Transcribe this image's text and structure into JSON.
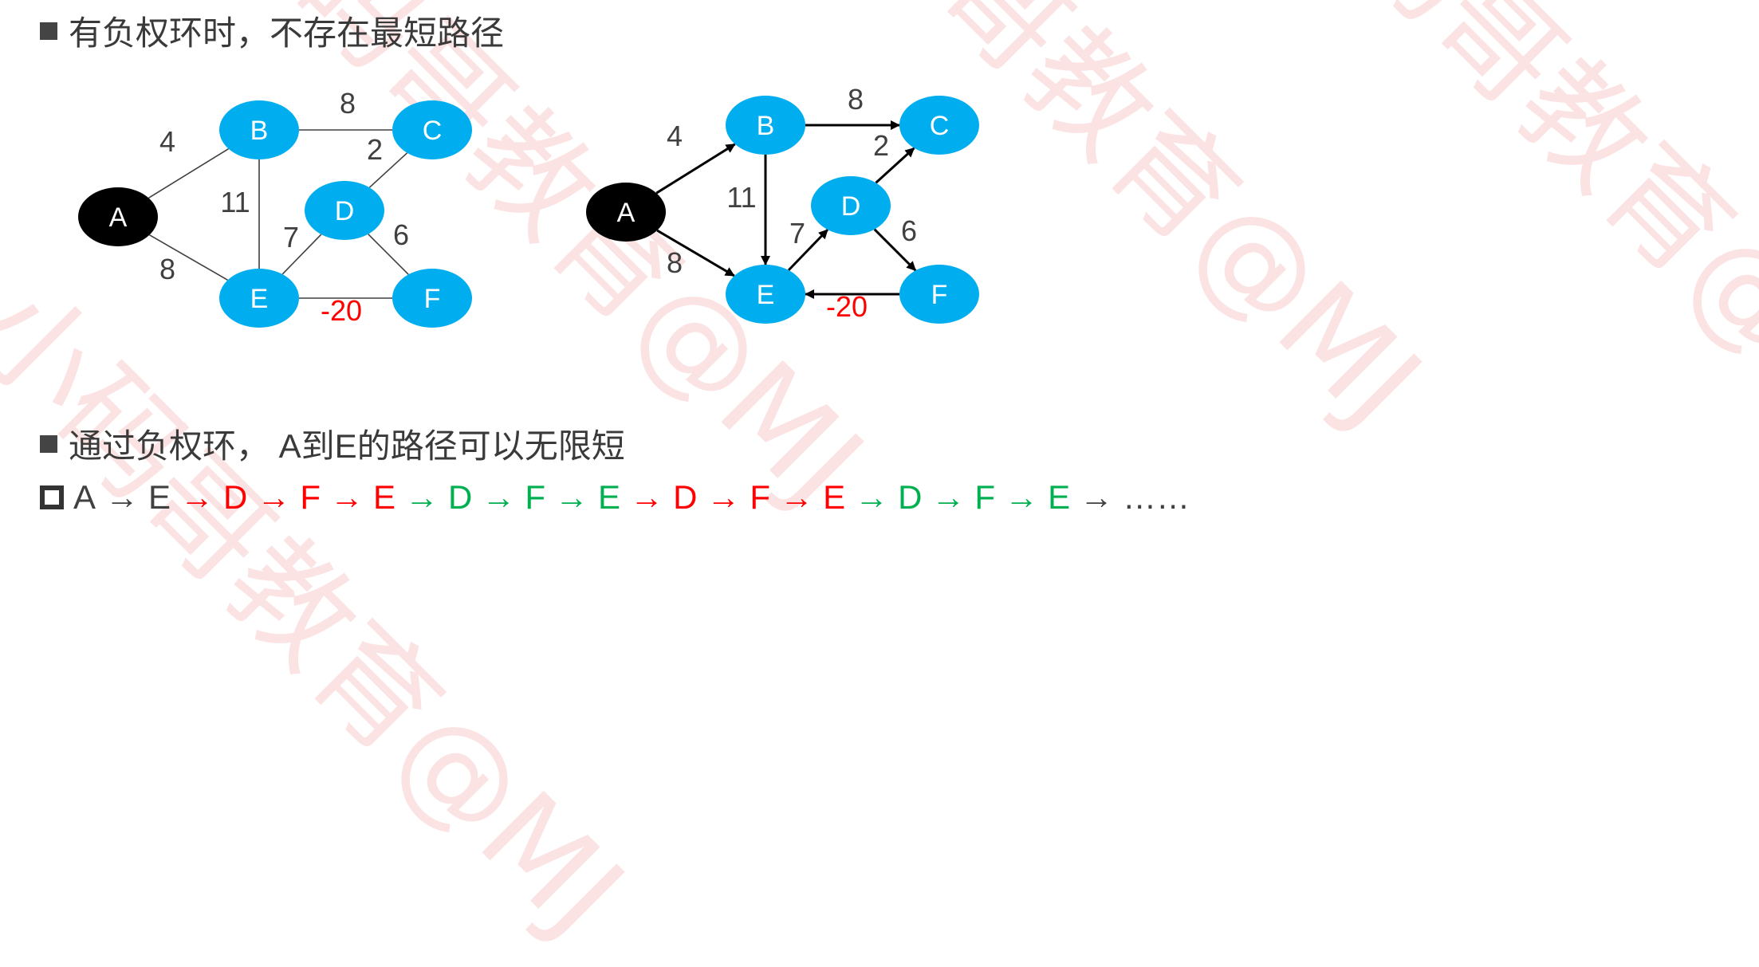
{
  "heading1": "有负权环时，不存在最短路径",
  "heading2": "通过负权环， A到E的路径可以无限短",
  "watermark": "小码哥教育@MJ",
  "graph": {
    "nodes": [
      {
        "id": "A",
        "label": "A",
        "fill": "#000000"
      },
      {
        "id": "B",
        "label": "B",
        "fill": "#00aeef"
      },
      {
        "id": "C",
        "label": "C",
        "fill": "#00aeef"
      },
      {
        "id": "D",
        "label": "D",
        "fill": "#00aeef"
      },
      {
        "id": "E",
        "label": "E",
        "fill": "#00aeef"
      },
      {
        "id": "F",
        "label": "F",
        "fill": "#00aeef"
      }
    ],
    "edges": [
      {
        "from": "A",
        "to": "B",
        "weight": "4",
        "color": "#404040"
      },
      {
        "from": "A",
        "to": "E",
        "weight": "8",
        "color": "#404040"
      },
      {
        "from": "B",
        "to": "C",
        "weight": "8",
        "color": "#404040"
      },
      {
        "from": "B",
        "to": "E",
        "weight": "11",
        "color": "#404040"
      },
      {
        "from": "D",
        "to": "C",
        "weight": "2",
        "color": "#404040"
      },
      {
        "from": "E",
        "to": "D",
        "weight": "7",
        "color": "#404040"
      },
      {
        "from": "D",
        "to": "F",
        "weight": "6",
        "color": "#404040"
      },
      {
        "from": "F",
        "to": "E",
        "weight": "-20",
        "color": "#ff0000"
      }
    ]
  },
  "sequence": [
    {
      "text": "A",
      "color": "#404040"
    },
    {
      "text": "→",
      "color": "#404040"
    },
    {
      "text": "E",
      "color": "#404040"
    },
    {
      "text": "→",
      "color": "#ff0000"
    },
    {
      "text": "D",
      "color": "#ff0000"
    },
    {
      "text": "→",
      "color": "#ff0000"
    },
    {
      "text": "F",
      "color": "#ff0000"
    },
    {
      "text": "→",
      "color": "#ff0000"
    },
    {
      "text": "E",
      "color": "#ff0000"
    },
    {
      "text": "→",
      "color": "#00b050"
    },
    {
      "text": "D",
      "color": "#00b050"
    },
    {
      "text": "→",
      "color": "#00b050"
    },
    {
      "text": "F",
      "color": "#00b050"
    },
    {
      "text": "→",
      "color": "#00b050"
    },
    {
      "text": "E",
      "color": "#00b050"
    },
    {
      "text": "→",
      "color": "#ff0000"
    },
    {
      "text": "D",
      "color": "#ff0000"
    },
    {
      "text": "→",
      "color": "#ff0000"
    },
    {
      "text": "F",
      "color": "#ff0000"
    },
    {
      "text": "→",
      "color": "#ff0000"
    },
    {
      "text": "E",
      "color": "#ff0000"
    },
    {
      "text": "→",
      "color": "#00b050"
    },
    {
      "text": "D",
      "color": "#00b050"
    },
    {
      "text": "→",
      "color": "#00b050"
    },
    {
      "text": "F",
      "color": "#00b050"
    },
    {
      "text": "→",
      "color": "#00b050"
    },
    {
      "text": "E",
      "color": "#00b050"
    },
    {
      "text": "→",
      "color": "#404040"
    },
    {
      "text": "……",
      "color": "#404040"
    }
  ]
}
